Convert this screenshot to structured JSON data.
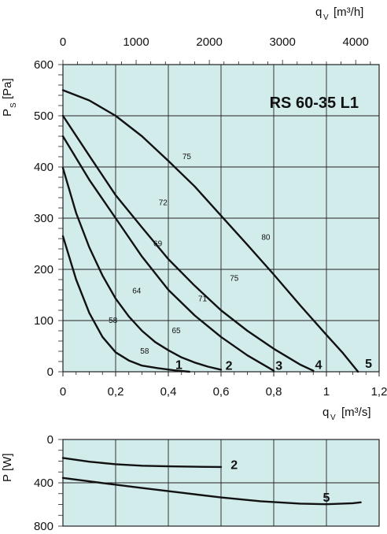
{
  "chart_data": [
    {
      "type": "line",
      "title": "RS 60-35 L1",
      "x_bottom": {
        "label": "q",
        "sub": "V",
        "unit": "[m³/s]",
        "range": [
          0,
          1.2
        ],
        "ticks": [
          "0",
          "0,2",
          "0,4",
          "0,6",
          "0,8",
          "1",
          "1,2"
        ]
      },
      "x_top": {
        "label": "q",
        "sub": "V",
        "unit": "[m³/h]",
        "range": [
          0,
          4320
        ],
        "ticks": [
          "0",
          "1000",
          "2000",
          "3000",
          "4000"
        ]
      },
      "y": {
        "label": "P",
        "sub": "S",
        "unit": "[Pa]",
        "range": [
          0,
          600
        ],
        "ticks": [
          "0",
          "100",
          "200",
          "300",
          "400",
          "500",
          "600"
        ]
      },
      "grid": true,
      "background": "#d2eceb",
      "series": [
        {
          "name": "1",
          "points": [
            [
              0,
              265
            ],
            [
              0.05,
              180
            ],
            [
              0.1,
              115
            ],
            [
              0.15,
              68
            ],
            [
              0.2,
              38
            ],
            [
              0.25,
              22
            ],
            [
              0.3,
              12
            ],
            [
              0.36,
              7
            ],
            [
              0.42,
              3
            ],
            [
              0.48,
              0
            ]
          ]
        },
        {
          "name": "2",
          "points": [
            [
              0,
              398
            ],
            [
              0.05,
              310
            ],
            [
              0.1,
              243
            ],
            [
              0.15,
              188
            ],
            [
              0.2,
              143
            ],
            [
              0.25,
              108
            ],
            [
              0.3,
              80
            ],
            [
              0.35,
              58
            ],
            [
              0.4,
              42
            ],
            [
              0.45,
              28
            ],
            [
              0.5,
              18
            ],
            [
              0.55,
              10
            ],
            [
              0.6,
              4
            ]
          ]
        },
        {
          "name": "3",
          "points": [
            [
              0,
              460
            ],
            [
              0.1,
              375
            ],
            [
              0.2,
              300
            ],
            [
              0.3,
              225
            ],
            [
              0.4,
              160
            ],
            [
              0.5,
              110
            ],
            [
              0.6,
              68
            ],
            [
              0.7,
              32
            ],
            [
              0.8,
              2
            ]
          ]
        },
        {
          "name": "4",
          "points": [
            [
              0,
              500
            ],
            [
              0.1,
              422
            ],
            [
              0.2,
              345
            ],
            [
              0.3,
              282
            ],
            [
              0.4,
              220
            ],
            [
              0.5,
              168
            ],
            [
              0.6,
              120
            ],
            [
              0.7,
              80
            ],
            [
              0.8,
              45
            ],
            [
              0.9,
              14
            ],
            [
              0.95,
              2
            ]
          ]
        },
        {
          "name": "5",
          "points": [
            [
              0,
              550
            ],
            [
              0.1,
              530
            ],
            [
              0.2,
              500
            ],
            [
              0.3,
              460
            ],
            [
              0.4,
              412
            ],
            [
              0.5,
              362
            ],
            [
              0.6,
              305
            ],
            [
              0.7,
              248
            ],
            [
              0.8,
              190
            ],
            [
              0.9,
              130
            ],
            [
              1.0,
              72
            ],
            [
              1.06,
              38
            ],
            [
              1.12,
              0
            ]
          ]
        }
      ],
      "curve_labels": [
        {
          "text": "1",
          "x": 0.44,
          "y": 15
        },
        {
          "text": "2",
          "x": 0.63,
          "y": 13
        },
        {
          "text": "3",
          "x": 0.82,
          "y": 13
        },
        {
          "text": "4",
          "x": 0.97,
          "y": 15
        },
        {
          "text": "5",
          "x": 1.16,
          "y": 17
        }
      ],
      "efficiency_labels": [
        {
          "text": "58",
          "x": 0.19,
          "y": 100
        },
        {
          "text": "58",
          "x": 0.31,
          "y": 40
        },
        {
          "text": "64",
          "x": 0.28,
          "y": 158
        },
        {
          "text": "65",
          "x": 0.43,
          "y": 80
        },
        {
          "text": "69",
          "x": 0.36,
          "y": 250
        },
        {
          "text": "71",
          "x": 0.53,
          "y": 142
        },
        {
          "text": "72",
          "x": 0.38,
          "y": 330
        },
        {
          "text": "75",
          "x": 0.65,
          "y": 182
        },
        {
          "text": "75",
          "x": 0.47,
          "y": 420
        },
        {
          "text": "80",
          "x": 0.77,
          "y": 262
        }
      ]
    },
    {
      "type": "line",
      "x": {
        "range": [
          0,
          1.2
        ]
      },
      "y": {
        "label": "P",
        "unit": "[W]",
        "range": [
          0,
          800
        ],
        "reversed": true,
        "ticks": [
          "0",
          "400",
          "800"
        ]
      },
      "grid": true,
      "series": [
        {
          "name": "2",
          "points": [
            [
              0,
              170
            ],
            [
              0.1,
              205
            ],
            [
              0.2,
              228
            ],
            [
              0.3,
              242
            ],
            [
              0.4,
              248
            ],
            [
              0.5,
              252
            ],
            [
              0.6,
              254
            ]
          ]
        },
        {
          "name": "5",
          "points": [
            [
              0,
              355
            ],
            [
              0.15,
              402
            ],
            [
              0.3,
              448
            ],
            [
              0.45,
              492
            ],
            [
              0.6,
              535
            ],
            [
              0.75,
              570
            ],
            [
              0.9,
              592
            ],
            [
              1.0,
              598
            ],
            [
              1.1,
              588
            ],
            [
              1.13,
              580
            ]
          ]
        }
      ],
      "curve_labels": [
        {
          "text": "2",
          "x": 0.65,
          "y": 230
        },
        {
          "text": "5",
          "x": 1.0,
          "y": 530
        }
      ]
    }
  ]
}
